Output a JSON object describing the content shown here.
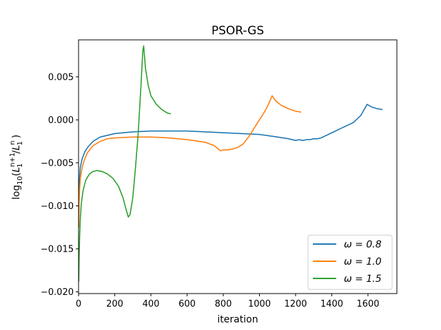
{
  "chart_data": {
    "type": "line",
    "title": "PSOR-GS",
    "xlabel": "iteration",
    "ylabel_prefix": "log",
    "ylabel_sub": "10",
    "ylabel_rest": "(L",
    "ylabel_math": "log10(L_1^{n+1}/L_1^n)",
    "xlim": [
      0,
      1760
    ],
    "ylim": [
      -0.0202,
      0.0093
    ],
    "x_ticks": [
      0,
      200,
      400,
      600,
      800,
      1000,
      1200,
      1400,
      1600
    ],
    "x_tick_labels": [
      "0",
      "200",
      "400",
      "600",
      "800",
      "1000",
      "1200",
      "1400",
      "1600"
    ],
    "y_ticks": [
      -0.02,
      -0.015,
      -0.01,
      -0.005,
      0.0,
      0.005
    ],
    "y_tick_labels": [
      "−0.020",
      "−0.015",
      "−0.010",
      "−0.005",
      "0.000",
      "0.005"
    ],
    "legend_position": "lower-right",
    "grid": false,
    "series": [
      {
        "name": "ω = 0.8",
        "color": "#1f77b4",
        "points": [
          [
            1,
            -0.0113
          ],
          [
            3,
            -0.008
          ],
          [
            6,
            -0.0065
          ],
          [
            10,
            -0.0055
          ],
          [
            20,
            -0.0045
          ],
          [
            35,
            -0.0037
          ],
          [
            50,
            -0.0032
          ],
          [
            80,
            -0.0025
          ],
          [
            120,
            -0.002
          ],
          [
            160,
            -0.0018
          ],
          [
            200,
            -0.0016
          ],
          [
            300,
            -0.0014
          ],
          [
            400,
            -0.0013
          ],
          [
            500,
            -0.0013
          ],
          [
            600,
            -0.0013
          ],
          [
            700,
            -0.0014
          ],
          [
            800,
            -0.0015
          ],
          [
            900,
            -0.0016
          ],
          [
            1000,
            -0.0017
          ],
          [
            1100,
            -0.002
          ],
          [
            1160,
            -0.0022
          ],
          [
            1200,
            -0.0024
          ],
          [
            1220,
            -0.0023
          ],
          [
            1240,
            -0.0024
          ],
          [
            1260,
            -0.0023
          ],
          [
            1280,
            -0.0023
          ],
          [
            1300,
            -0.0022
          ],
          [
            1320,
            -0.0022
          ],
          [
            1340,
            -0.0021
          ],
          [
            1360,
            -0.0019
          ],
          [
            1380,
            -0.0017
          ],
          [
            1400,
            -0.0015
          ],
          [
            1420,
            -0.0013
          ],
          [
            1450,
            -0.001
          ],
          [
            1480,
            -0.0007
          ],
          [
            1520,
            -0.0003
          ],
          [
            1560,
            0.0005
          ],
          [
            1595,
            0.0018
          ],
          [
            1620,
            0.0015
          ],
          [
            1650,
            0.0013
          ],
          [
            1680,
            0.0012
          ]
        ]
      },
      {
        "name": "ω = 1.0",
        "color": "#ff7f0e",
        "points": [
          [
            1,
            -0.0125
          ],
          [
            3,
            -0.0095
          ],
          [
            6,
            -0.008
          ],
          [
            10,
            -0.0068
          ],
          [
            20,
            -0.0055
          ],
          [
            35,
            -0.0045
          ],
          [
            50,
            -0.0038
          ],
          [
            80,
            -0.003
          ],
          [
            120,
            -0.0025
          ],
          [
            160,
            -0.0022
          ],
          [
            200,
            -0.0021
          ],
          [
            300,
            -0.002
          ],
          [
            400,
            -0.002
          ],
          [
            500,
            -0.0021
          ],
          [
            600,
            -0.0023
          ],
          [
            700,
            -0.0026
          ],
          [
            750,
            -0.003
          ],
          [
            785,
            -0.0036
          ],
          [
            800,
            -0.0035
          ],
          [
            820,
            -0.0035
          ],
          [
            850,
            -0.0034
          ],
          [
            880,
            -0.0032
          ],
          [
            910,
            -0.0028
          ],
          [
            940,
            -0.002
          ],
          [
            970,
            -0.001
          ],
          [
            1000,
            0.0
          ],
          [
            1030,
            0.001
          ],
          [
            1050,
            0.0018
          ],
          [
            1070,
            0.0028
          ],
          [
            1090,
            0.0022
          ],
          [
            1120,
            0.0017
          ],
          [
            1160,
            0.0013
          ],
          [
            1200,
            0.001
          ],
          [
            1230,
            0.0009
          ]
        ]
      },
      {
        "name": "ω = 1.5",
        "color": "#2ca02c",
        "points": [
          [
            1,
            -0.0188
          ],
          [
            3,
            -0.016
          ],
          [
            6,
            -0.0135
          ],
          [
            10,
            -0.0115
          ],
          [
            15,
            -0.0098
          ],
          [
            25,
            -0.0082
          ],
          [
            40,
            -0.007
          ],
          [
            60,
            -0.0063
          ],
          [
            80,
            -0.006
          ],
          [
            100,
            -0.0059
          ],
          [
            130,
            -0.006
          ],
          [
            160,
            -0.0063
          ],
          [
            190,
            -0.0068
          ],
          [
            220,
            -0.0077
          ],
          [
            245,
            -0.009
          ],
          [
            265,
            -0.0106
          ],
          [
            275,
            -0.0113
          ],
          [
            285,
            -0.011
          ],
          [
            300,
            -0.009
          ],
          [
            315,
            -0.0055
          ],
          [
            330,
            -0.0015
          ],
          [
            345,
            0.004
          ],
          [
            355,
            0.008
          ],
          [
            360,
            0.0086
          ],
          [
            370,
            0.006
          ],
          [
            385,
            0.004
          ],
          [
            400,
            0.0028
          ],
          [
            430,
            0.0018
          ],
          [
            460,
            0.0012
          ],
          [
            490,
            0.0008
          ],
          [
            510,
            0.0007
          ]
        ]
      }
    ]
  }
}
